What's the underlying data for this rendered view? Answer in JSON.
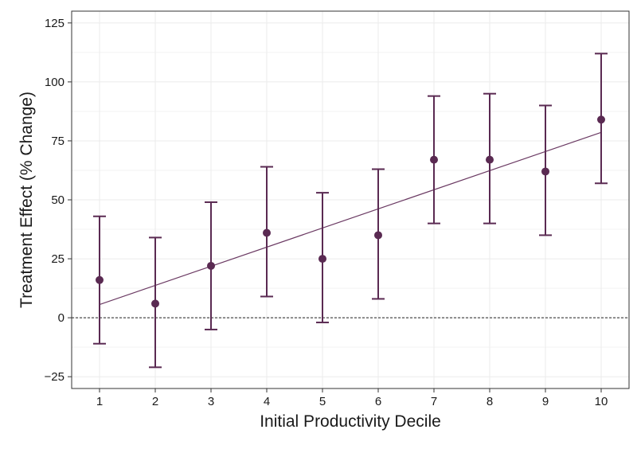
{
  "chart_data": {
    "type": "scatter",
    "xlabel": "Initial Productivity Decile",
    "ylabel": "Treatment Effect (% Change)",
    "x": [
      1,
      2,
      3,
      4,
      5,
      6,
      7,
      8,
      9,
      10
    ],
    "estimate": [
      16,
      6,
      22,
      36,
      25,
      35,
      67,
      67,
      62,
      84
    ],
    "ci_low": [
      -11,
      -21,
      -5,
      9,
      -2,
      8,
      40,
      40,
      35,
      57
    ],
    "ci_high": [
      43,
      34,
      49,
      64,
      53,
      63,
      94,
      95,
      90,
      112
    ],
    "fit_line": {
      "x": [
        1,
        10
      ],
      "y": [
        5.6,
        78.6
      ]
    },
    "reference_line_y": 0,
    "xticks": [
      1,
      2,
      3,
      4,
      5,
      6,
      7,
      8,
      9,
      10
    ],
    "yticks": [
      -25,
      0,
      25,
      50,
      75,
      100,
      125
    ],
    "xlim": [
      0.5,
      10.5
    ],
    "ylim": [
      -30,
      130
    ],
    "grid": true,
    "colors": {
      "marker": "#5a2a52",
      "line": "#6b3a63",
      "reference": "#222222"
    }
  }
}
